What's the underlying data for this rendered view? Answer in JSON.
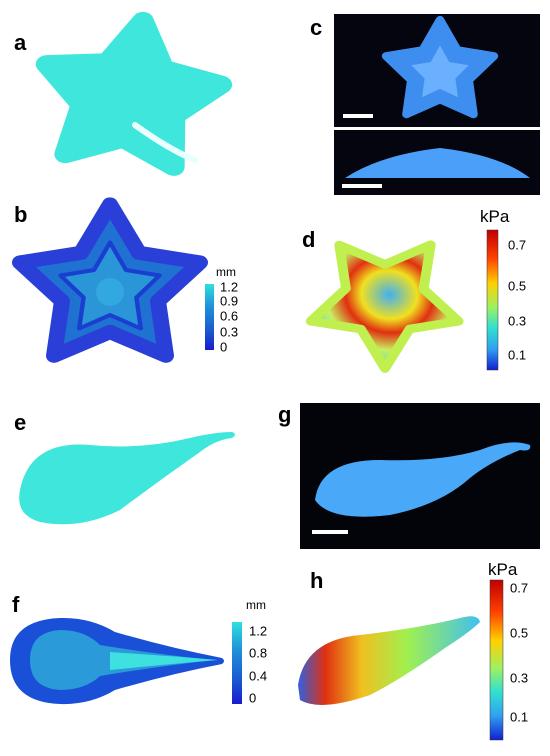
{
  "panel_labels": [
    "a",
    "b",
    "c",
    "d",
    "e",
    "f",
    "g",
    "h"
  ],
  "thickness_scale_b": {
    "unit": "mm",
    "ticks": [
      1.2,
      0.9,
      0.6,
      0.3,
      0
    ]
  },
  "pressure_scale_d": {
    "unit": "kPa",
    "ticks": [
      0.7,
      0.5,
      0.3,
      0.1
    ]
  },
  "thickness_scale_f": {
    "unit": "mm",
    "ticks": [
      1.2,
      0.8,
      0.4,
      0
    ]
  },
  "pressure_scale_h": {
    "unit": "kPa",
    "ticks": [
      0.7,
      0.5,
      0.3,
      0.1
    ]
  }
}
